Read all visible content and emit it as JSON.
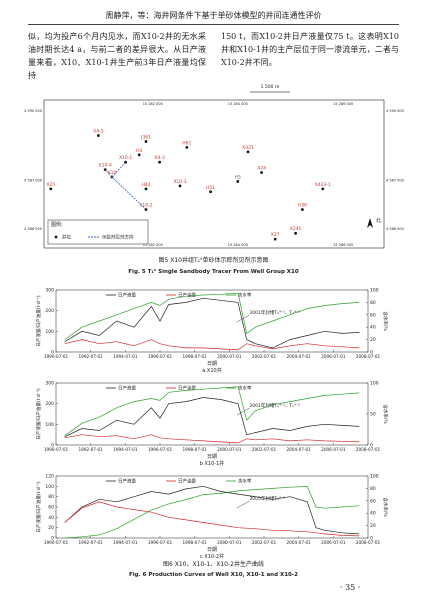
{
  "header": {
    "title": "周静萍，等：海井网条件下基于单砂体模型的井间连通性评价"
  },
  "body": {
    "left": "似，均为投产6个月内见水，而X10-2井的无水采油时期长达4 a，与前二者的差异很大。从日产液量来看，X10、X10-1井生产前3年日产液量均保持",
    "right": "150 t，而X10-2井日产液量仅75 t。这表明X10井和X10-1井的主产层位于同一渗流单元，二者与X10-2井不同。"
  },
  "map": {
    "scale": "1 500 m",
    "top_coords": [
      "15 282 000",
      "15 284 000",
      "15 286 000"
    ],
    "bottom_coords": [
      "15 282 000",
      "15 284 000",
      "15 286 000"
    ],
    "left_coords": [
      "4 590 000",
      "4 587 000",
      "4 586 000"
    ],
    "right_coords": [
      "4 590 000",
      "4 587 000",
      "4 586 000"
    ],
    "north": "北",
    "wells": [
      "X4-5",
      "J361",
      "H61",
      "X4-3",
      "X10-1",
      "H4",
      "X10",
      "X10-4",
      "X421",
      "H42",
      "X10-3",
      "H51",
      "H5",
      "X24",
      "X25",
      "X10-2",
      "X423-1",
      "H36",
      "X27",
      "X241"
    ],
    "legend": {
      "title": "图例:",
      "well": "井位",
      "tracer": "示踪剂见剂方向"
    }
  },
  "fig5": {
    "caption_cn": "图5  X10井组T₁⁴单砂体示踪剂见剂示意图",
    "caption_en": "Fig. 5  T₁⁴ Single Sandbody Tracer From Well Group X10"
  },
  "fig6": {
    "caption_cn": "图6  X10、X10-1、X10-2井生产曲线",
    "caption_en": "Fig. 6  Production Curves of Well X10, X10-1 and X10-2"
  },
  "page_number": "· 35 ·",
  "chart_data": [
    {
      "type": "line",
      "caption": "a  X10井",
      "xlabel": "日期",
      "ylabel": "日产液量/日产油量(t·d⁻¹)",
      "y2label": "含水率/%",
      "annotation": "2001年封堵T₁⁴⁻¹、T₁⁴⁻²",
      "xlim": [
        1990.5,
        2008.5
      ],
      "xticks": [
        {
          "value": 1990.5,
          "label": "1990-07-01"
        },
        {
          "value": 1992.5,
          "label": "1992-07-01"
        },
        {
          "value": 1994.5,
          "label": "1994-07-01"
        },
        {
          "value": 1996.5,
          "label": "1996-07-01"
        },
        {
          "value": 1998.5,
          "label": "1998-07-01"
        },
        {
          "value": 2000.5,
          "label": "2000-07-01"
        },
        {
          "value": 2002.5,
          "label": "2002-07-01"
        },
        {
          "value": 2004.5,
          "label": "2004-07-01"
        },
        {
          "value": 2006.5,
          "label": "2006-07-01"
        },
        {
          "value": 2008.5,
          "label": "2008-07-01"
        }
      ],
      "ylim": [
        0,
        300
      ],
      "yticks": [
        0,
        100,
        200,
        300
      ],
      "y2lim": [
        0,
        100
      ],
      "y2ticks": [
        0,
        20,
        40,
        60,
        80,
        100
      ],
      "x": [
        1991,
        1992,
        1993,
        1994,
        1995,
        1996,
        1996.5,
        1997,
        1998,
        1999,
        2000,
        2001,
        2001.5,
        2002,
        2003,
        2004,
        2005,
        2006,
        2007,
        2008
      ],
      "series": [
        {
          "name": "日产液量",
          "color": "#222222",
          "values": [
            50,
            100,
            80,
            150,
            120,
            220,
            150,
            230,
            240,
            260,
            250,
            240,
            60,
            40,
            20,
            60,
            80,
            100,
            90,
            95
          ]
        },
        {
          "name": "日产油量",
          "color": "#d62728",
          "values": [
            40,
            60,
            40,
            50,
            30,
            60,
            40,
            30,
            20,
            20,
            15,
            10,
            40,
            30,
            15,
            30,
            40,
            30,
            25,
            20
          ]
        },
        {
          "name": "含水率",
          "color": "#2ca02c",
          "axis": "y2",
          "values": [
            20,
            40,
            50,
            60,
            70,
            80,
            75,
            85,
            90,
            92,
            93,
            95,
            30,
            40,
            50,
            60,
            70,
            75,
            78,
            80
          ]
        }
      ]
    },
    {
      "type": "line",
      "caption": "b  X10-1井",
      "xlabel": "日期",
      "ylabel": "日产液量/日产油量(t·d⁻¹)",
      "y2label": "含水率/%",
      "annotation": "2001年封堵T₁⁴⁻¹、T₁⁴⁻²",
      "xlim": [
        1990.5,
        2008.5
      ],
      "xticks": [
        {
          "value": 1990.5,
          "label": "1990-07-01"
        },
        {
          "value": 1992.5,
          "label": "1992-07-01"
        },
        {
          "value": 1994.5,
          "label": "1994-07-01"
        },
        {
          "value": 1996.5,
          "label": "1996-07-01"
        },
        {
          "value": 1998.5,
          "label": "1998-07-01"
        },
        {
          "value": 2000.5,
          "label": "2000-07-01"
        },
        {
          "value": 2002.5,
          "label": "2002-07-01"
        },
        {
          "value": 2004.5,
          "label": "2004-07-01"
        },
        {
          "value": 2006.5,
          "label": "2006-07-01"
        },
        {
          "value": 2008.5,
          "label": "2008-07-01"
        }
      ],
      "ylim": [
        0,
        300
      ],
      "yticks": [
        0,
        100,
        200,
        300
      ],
      "y2lim": [
        0,
        100
      ],
      "y2ticks": [
        0,
        50,
        100
      ],
      "x": [
        1991,
        1992,
        1993,
        1994,
        1995,
        1996,
        1996.5,
        1997,
        1998,
        1999,
        2000,
        2001,
        2001.5,
        2002,
        2003,
        2004,
        2005,
        2006,
        2007,
        2008
      ],
      "series": [
        {
          "name": "日产液量",
          "color": "#222222",
          "values": [
            40,
            80,
            70,
            120,
            100,
            180,
            130,
            200,
            210,
            230,
            220,
            200,
            50,
            60,
            80,
            70,
            90,
            100,
            95,
            90
          ]
        },
        {
          "name": "日产油量",
          "color": "#d62728",
          "values": [
            35,
            50,
            40,
            45,
            30,
            50,
            35,
            30,
            25,
            20,
            15,
            10,
            30,
            25,
            30,
            20,
            25,
            20,
            18,
            15
          ]
        },
        {
          "name": "含水率",
          "color": "#2ca02c",
          "axis": "y2",
          "values": [
            15,
            35,
            45,
            60,
            70,
            75,
            72,
            85,
            88,
            90,
            92,
            94,
            40,
            55,
            65,
            70,
            75,
            80,
            82,
            84
          ]
        }
      ]
    },
    {
      "type": "line",
      "caption": "c  X10-2井",
      "xlabel": "日期",
      "ylabel": "日产液量/日产油量(t·d⁻¹)",
      "y2label": "含水率/%",
      "annotation": "2005年封堵T₁⁴⁻²",
      "xlim": [
        1990.5,
        2008.5
      ],
      "xticks": [
        {
          "value": 1990.5,
          "label": "1990-07-01"
        },
        {
          "value": 1992.5,
          "label": "1992-07-01"
        },
        {
          "value": 1994.5,
          "label": "1994-07-01"
        },
        {
          "value": 1996.5,
          "label": "1996-07-01"
        },
        {
          "value": 1998.5,
          "label": "1998-07-01"
        },
        {
          "value": 2000.5,
          "label": "2000-07-01"
        },
        {
          "value": 2002.5,
          "label": "2002-07-01"
        },
        {
          "value": 2004.5,
          "label": "2004-07-01"
        },
        {
          "value": 2006.5,
          "label": "2006-07-01"
        },
        {
          "value": 2008.5,
          "label": "2008-07-01"
        }
      ],
      "ylim": [
        0,
        120
      ],
      "yticks": [
        0,
        20,
        40,
        60,
        80,
        100,
        120
      ],
      "y2lim": [
        0,
        100
      ],
      "y2ticks": [
        0,
        20,
        40,
        60,
        80,
        100
      ],
      "x": [
        1991,
        1992,
        1993,
        1994,
        1995,
        1996,
        1997,
        1998,
        1999,
        2000,
        2001,
        2002,
        2003,
        2004,
        2005,
        2005.5,
        2006,
        2007,
        2008
      ],
      "series": [
        {
          "name": "日产液量",
          "color": "#222222",
          "values": [
            30,
            60,
            75,
            70,
            80,
            90,
            85,
            95,
            100,
            90,
            85,
            80,
            75,
            80,
            70,
            20,
            15,
            10,
            8
          ]
        },
        {
          "name": "日产油量",
          "color": "#d62728",
          "values": [
            30,
            58,
            70,
            60,
            55,
            50,
            40,
            35,
            30,
            25,
            20,
            18,
            15,
            14,
            12,
            10,
            8,
            5,
            4
          ]
        },
        {
          "name": "含水率",
          "color": "#2ca02c",
          "axis": "y2",
          "values": [
            0,
            2,
            5,
            15,
            30,
            45,
            55,
            62,
            70,
            72,
            76,
            78,
            80,
            82,
            83,
            50,
            48,
            50,
            52
          ]
        }
      ]
    }
  ]
}
